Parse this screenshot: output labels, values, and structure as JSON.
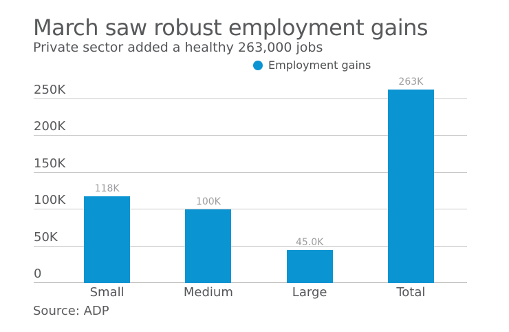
{
  "header": {
    "title": "March saw robust employment gains",
    "subtitle": "Private sector added a healthy 263,000 jobs"
  },
  "legend": {
    "label": "Employment gains",
    "marker_color": "#0a94d1"
  },
  "chart_data": {
    "type": "bar",
    "title": "March saw robust employment gains",
    "subtitle": "Private sector added a healthy 263,000 jobs",
    "categories": [
      "Small",
      "Medium",
      "Large",
      "Total"
    ],
    "series": [
      {
        "name": "Employment gains",
        "values": [
          118000,
          100000,
          45000,
          263000
        ]
      }
    ],
    "data_labels": [
      "118K",
      "100K",
      "45.0K",
      "263K"
    ],
    "yticks": [
      0,
      50000,
      100000,
      150000,
      200000,
      250000
    ],
    "ytick_labels": [
      "0",
      "50K",
      "100K",
      "150K",
      "200K",
      "250K"
    ],
    "ylim": [
      0,
      274000
    ],
    "xlabel": "",
    "ylabel": "",
    "grid": true,
    "legend_position": "top",
    "bar_color": "#0a94d1",
    "gridline_color": "#c8c8c8",
    "axis_line_color": "#b0b0b0",
    "data_label_color": "#9d9da0",
    "text_color": "#58595b"
  },
  "footer": {
    "source": "Source: ADP"
  }
}
